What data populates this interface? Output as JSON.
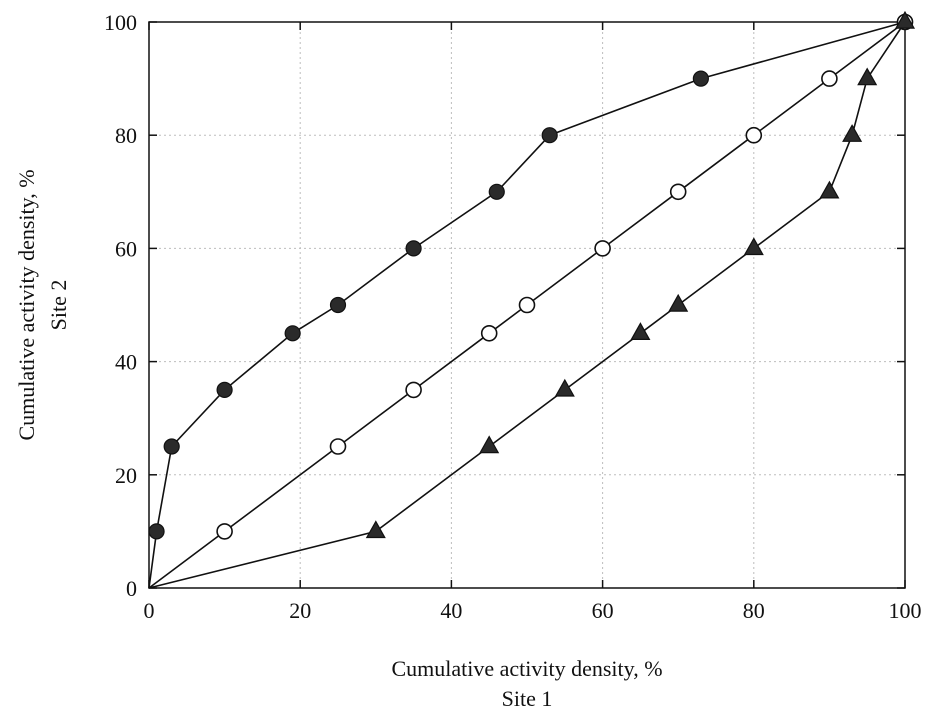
{
  "chart_data": {
    "type": "line",
    "xlabel": "Cumulative activity density, %",
    "xlabel_sub": "Site 1",
    "ylabel": "Cumulative activity density, %",
    "ylabel_sub": "Site 2",
    "xlim": [
      0,
      100
    ],
    "ylim": [
      0,
      100
    ],
    "xticks": [
      0,
      20,
      40,
      60,
      80,
      100
    ],
    "yticks": [
      0,
      20,
      40,
      60,
      80,
      100
    ],
    "grid": true,
    "series": [
      {
        "marker": "filled-circle",
        "x": [
          0,
          1,
          3,
          10,
          19,
          25,
          35,
          46,
          53,
          73,
          100
        ],
        "y": [
          0,
          10,
          25,
          35,
          45,
          50,
          60,
          70,
          80,
          90,
          100
        ]
      },
      {
        "marker": "open-circle",
        "x": [
          0,
          10,
          25,
          35,
          45,
          50,
          60,
          70,
          80,
          90,
          100
        ],
        "y": [
          0,
          10,
          25,
          35,
          45,
          50,
          60,
          70,
          80,
          90,
          100
        ]
      },
      {
        "marker": "filled-triangle",
        "x": [
          0,
          30,
          45,
          55,
          65,
          70,
          80,
          90,
          93,
          95,
          100
        ],
        "y": [
          0,
          10,
          25,
          35,
          45,
          50,
          60,
          70,
          80,
          90,
          100
        ]
      }
    ],
    "colors": {
      "line": "#111111",
      "marker_fill": "#2a2a2a",
      "grid": "#bdbdbd"
    }
  }
}
